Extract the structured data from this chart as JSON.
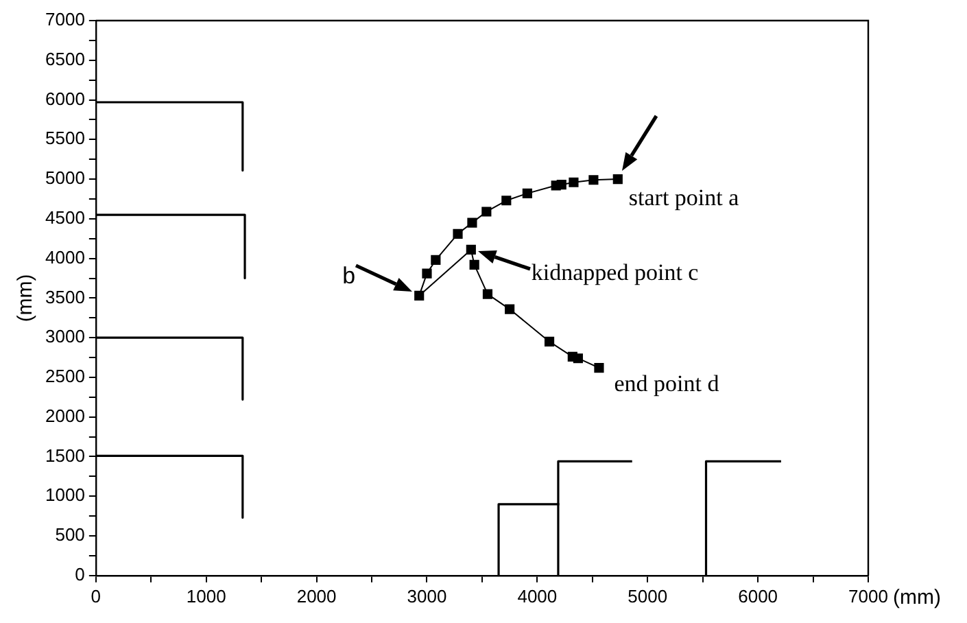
{
  "chart_data": {
    "type": "line",
    "xlabel": "(mm)",
    "ylabel": "(mm)",
    "xlim": [
      0,
      7000
    ],
    "ylim": [
      0,
      7000
    ],
    "xticks": [
      0,
      {
        "value": 500,
        "label": null
      },
      1000,
      {
        "value": 1500,
        "label": null
      },
      2000,
      {
        "value": 2500,
        "label": null
      },
      3000,
      {
        "value": 3500,
        "label": null
      },
      4000,
      {
        "value": 4500,
        "label": null
      },
      5000,
      {
        "value": 5500,
        "label": null
      },
      6000,
      {
        "value": 6500,
        "label": null
      },
      7000
    ],
    "yticks": [
      0,
      {
        "value": 250,
        "label": null
      },
      500,
      {
        "value": 750,
        "label": null
      },
      1000,
      {
        "value": 1250,
        "label": null
      },
      1500,
      {
        "value": 1750,
        "label": null
      },
      2000,
      {
        "value": 2250,
        "label": null
      },
      2500,
      {
        "value": 2750,
        "label": null
      },
      3000,
      {
        "value": 3250,
        "label": null
      },
      3500,
      {
        "value": 3750,
        "label": null
      },
      4000,
      {
        "value": 4250,
        "label": null
      },
      4500,
      {
        "value": 4750,
        "label": null
      },
      5000,
      {
        "value": 5250,
        "label": null
      },
      5500,
      {
        "value": 5750,
        "label": null
      },
      6000,
      {
        "value": 6250,
        "label": null
      },
      6500,
      {
        "value": 6750,
        "label": null
      },
      7000
    ],
    "grid": false,
    "legend": false,
    "marker": "none",
    "line_style": "solid",
    "series": [
      {
        "color": "#000000",
        "marker": "square",
        "x": [
          4730,
          4510,
          4330,
          4220,
          4170,
          3910,
          3720,
          3540,
          3410,
          3280,
          3080,
          3000,
          2930,
          3400,
          3430,
          3550,
          3750,
          4110,
          4320,
          4370,
          4560
        ],
        "values": [
          5000,
          4990,
          4960,
          4930,
          4920,
          4820,
          4730,
          4590,
          4450,
          4310,
          3980,
          3810,
          3530,
          4110,
          3920,
          3550,
          3360,
          2950,
          2760,
          2740,
          2620
        ]
      },
      {
        "color": "#000000",
        "x": [
          0,
          1330,
          1330
        ],
        "values": [
          5970,
          5970,
          5110
        ]
      },
      {
        "color": "#000000",
        "x": [
          0,
          1350,
          1350
        ],
        "values": [
          4550,
          4550,
          3750
        ]
      },
      {
        "color": "#000000",
        "x": [
          0,
          1330,
          1330
        ],
        "values": [
          3000,
          3000,
          2220
        ]
      },
      {
        "color": "#000000",
        "x": [
          0,
          1330,
          1330
        ],
        "values": [
          1510,
          1510,
          730
        ]
      },
      {
        "color": "#000000",
        "x": [
          3650,
          3650,
          4200
        ],
        "values": [
          0,
          900,
          900
        ]
      },
      {
        "color": "#000000",
        "x": [
          4190,
          4190,
          4860
        ],
        "values": [
          0,
          1440,
          1440
        ]
      },
      {
        "color": "#000000",
        "x": [
          5530,
          5530,
          6210
        ],
        "values": [
          0,
          1440,
          1440
        ]
      }
    ],
    "annotations": [
      {
        "text": "start point a",
        "x": 4730,
        "y": 5000
      },
      {
        "text": "b",
        "x": 2930,
        "y": 3530
      },
      {
        "text": "kidnapped point c",
        "x": 3400,
        "y": 4110
      },
      {
        "text": "end point d",
        "x": 4560,
        "y": 2620
      }
    ]
  }
}
